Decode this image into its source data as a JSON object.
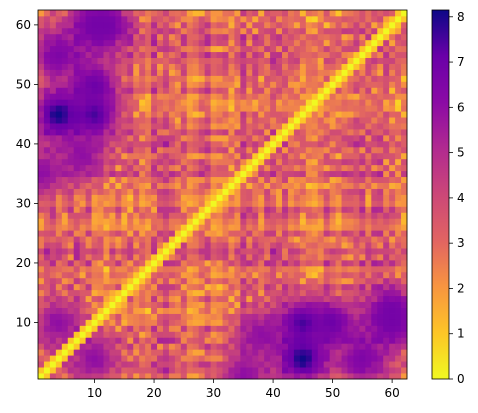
{
  "chart_data": {
    "type": "heatmap",
    "title": "",
    "xlabel": "",
    "ylabel": "",
    "n": 62,
    "xlim": [
      1,
      62
    ],
    "ylim": [
      1,
      62
    ],
    "x_ticks": [
      10,
      20,
      30,
      40,
      50,
      60
    ],
    "y_ticks": [
      10,
      20,
      30,
      40,
      50,
      60
    ],
    "colormap": "plasma_r",
    "colorbar": {
      "range": [
        0,
        8.15
      ],
      "ticks": [
        0,
        1,
        2,
        3,
        4,
        5,
        6,
        7,
        8
      ],
      "placement": "right"
    },
    "description_values": {
      "diagonal": 0,
      "hotspots": [
        {
          "i": 4,
          "j": 45,
          "value": 8.1
        },
        {
          "i": 10,
          "j": 45,
          "value": 7.5
        },
        {
          "i": 10,
          "j": 50,
          "value": 7.0
        },
        {
          "i": 10,
          "j": 60,
          "value": 6.8
        },
        {
          "i": 4,
          "j": 55,
          "value": 6.5
        },
        {
          "i": 12,
          "j": 60,
          "value": 6.8
        },
        {
          "i": 4,
          "j": 10,
          "value": 6.0
        },
        {
          "i": 1,
          "j": 35,
          "value": 6.0
        },
        {
          "i": 8,
          "j": 38,
          "value": 6.0
        }
      ]
    }
  }
}
